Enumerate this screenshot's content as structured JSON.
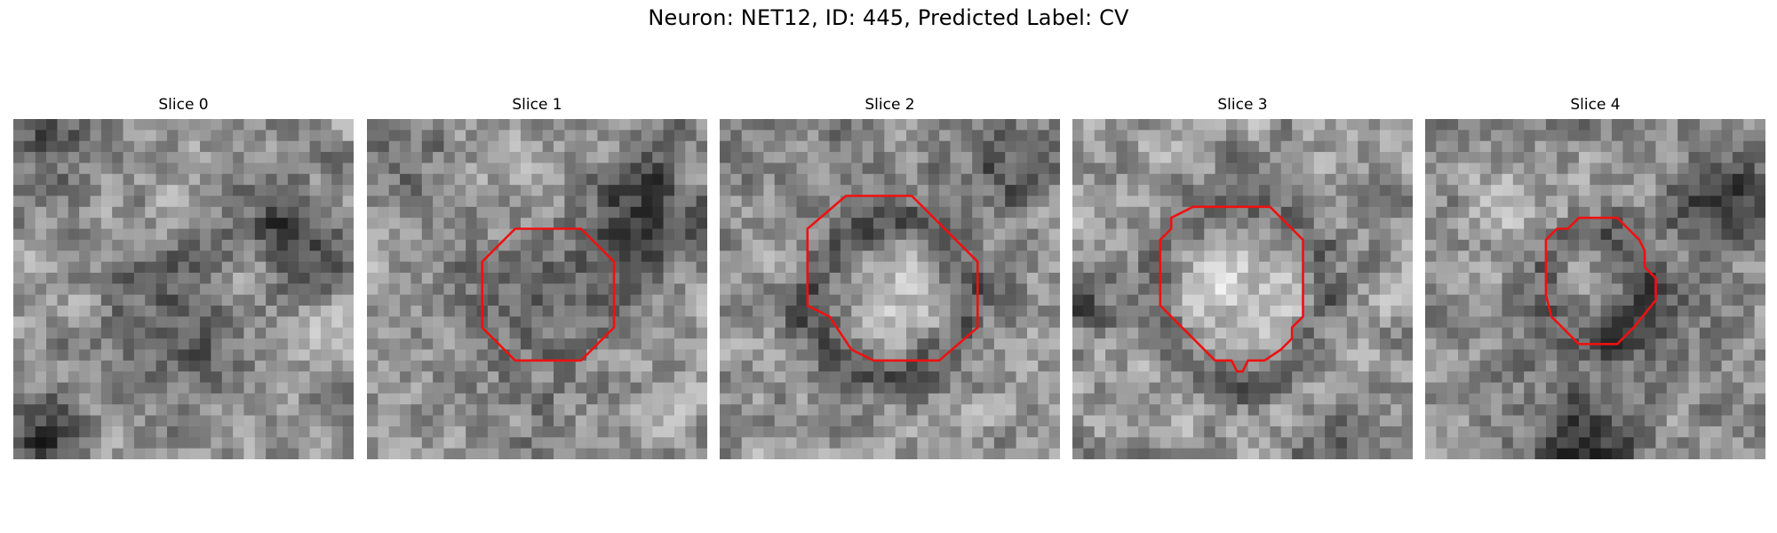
{
  "figure": {
    "title": "Neuron: NET12, ID: 445, Predicted Label: CV",
    "slices": [
      {
        "label": "Slice 0",
        "contour": false
      },
      {
        "label": "Slice 1",
        "contour": true
      },
      {
        "label": "Slice 2",
        "contour": true
      },
      {
        "label": "Slice 3",
        "contour": true
      },
      {
        "label": "Slice 4",
        "contour": true
      }
    ],
    "colors": {
      "contour": "#ee1111",
      "background": "#ffffff"
    }
  }
}
